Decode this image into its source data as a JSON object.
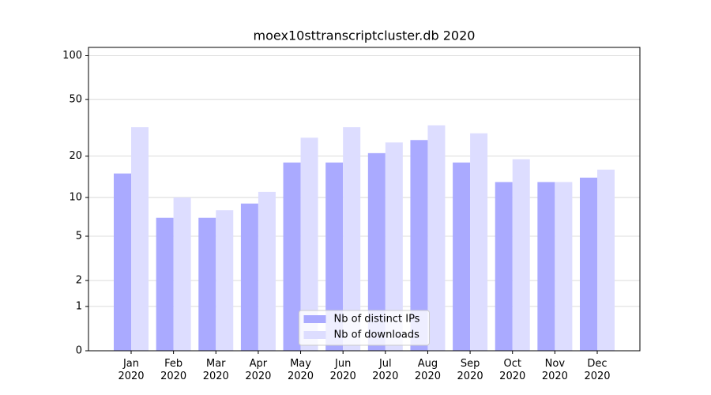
{
  "chart_data": {
    "type": "bar",
    "title": "moex10sttranscriptcluster.db 2020",
    "categories": [
      "Jan 2020",
      "Feb 2020",
      "Mar 2020",
      "Apr 2020",
      "May 2020",
      "Jun 2020",
      "Jul 2020",
      "Aug 2020",
      "Sep 2020",
      "Oct 2020",
      "Nov 2020",
      "Dec 2020"
    ],
    "series": [
      {
        "name": "Nb of distinct IPs",
        "color": "#aaaaff",
        "values": [
          15,
          7,
          7,
          9,
          18,
          18,
          21,
          26,
          18,
          13,
          13,
          14
        ]
      },
      {
        "name": "Nb of downloads",
        "color": "#ddddff",
        "values": [
          32,
          10,
          8,
          11,
          27,
          32,
          25,
          33,
          29,
          19,
          13,
          16
        ]
      }
    ],
    "y_scale": "log1p",
    "ylim": [
      0,
      114
    ],
    "yticks": [
      0,
      1,
      2,
      5,
      10,
      20,
      50,
      100
    ],
    "grid": true,
    "legend": "lower center"
  }
}
